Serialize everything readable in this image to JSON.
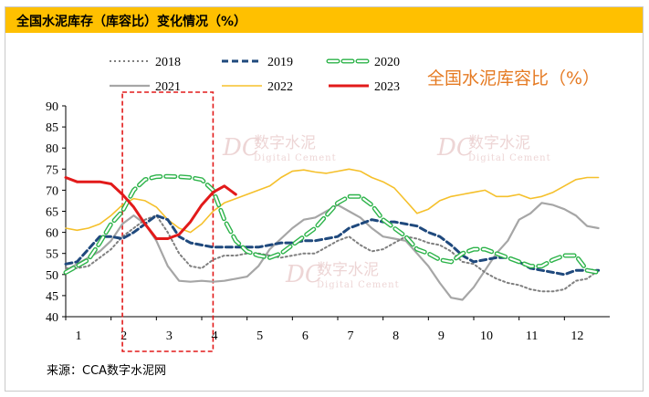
{
  "header": {
    "title": "全国水泥库存（库容比）变化情况（%）"
  },
  "source": "来源：CCA数字水泥网",
  "watermark": {
    "cn": "数字水泥",
    "en": "Digital Cement",
    "logo": "DC"
  },
  "colors": {
    "header_bg": "#ffc000",
    "s2018": "#7f7f7f",
    "s2019": "#1f497d",
    "s2020": "#2db34a",
    "s2021": "#a6a6a6",
    "s2022": "#f5c02b",
    "s2023": "#e21a1a",
    "chart_title": "#e57a22",
    "highlight_box": "#e21a1a"
  },
  "chart_data": {
    "type": "line",
    "title": "全国水泥库容比（%）",
    "xlabel": "",
    "ylabel": "",
    "xlim": [
      1,
      13
    ],
    "ylim": [
      40,
      90
    ],
    "yticks": [
      40,
      45,
      50,
      55,
      60,
      65,
      70,
      75,
      80,
      85,
      90
    ],
    "xticks": [
      "1",
      "2",
      "3",
      "4",
      "5",
      "6",
      "7",
      "8",
      "9",
      "10",
      "11",
      "12"
    ],
    "legend_position": "top-left",
    "highlight_months": [
      2.25,
      4.25
    ],
    "series": [
      {
        "name": "2018",
        "style": "dotted",
        "x": [
          1,
          1.25,
          1.5,
          1.75,
          2,
          2.25,
          2.5,
          2.75,
          3,
          3.25,
          3.5,
          3.75,
          4,
          4.25,
          4.5,
          4.75,
          5,
          5.25,
          5.5,
          5.75,
          6,
          6.25,
          6.5,
          6.75,
          7,
          7.25,
          7.5,
          7.75,
          8,
          8.25,
          8.5,
          8.75,
          9,
          9.25,
          9.5,
          9.75,
          10,
          10.25,
          10.5,
          10.75,
          11,
          11.25,
          11.5,
          11.75,
          12,
          12.25,
          12.5,
          12.75
        ],
        "y": [
          51.5,
          51.5,
          52,
          54,
          56,
          59,
          61,
          63,
          64,
          60,
          55,
          52,
          51.5,
          53.5,
          54.5,
          54.5,
          55,
          55,
          54.5,
          54,
          54.5,
          55,
          55,
          56.5,
          58,
          59,
          57,
          55.5,
          56,
          57.5,
          59,
          58.5,
          57.5,
          57,
          55.5,
          53,
          52.5,
          50.5,
          49,
          48,
          47.5,
          46.5,
          46,
          46,
          46.5,
          48.5,
          49,
          51
        ]
      },
      {
        "name": "2019",
        "style": "dashed",
        "x": [
          1,
          1.25,
          1.5,
          1.75,
          2,
          2.25,
          2.5,
          2.75,
          3,
          3.25,
          3.5,
          3.75,
          4,
          4.25,
          4.5,
          4.75,
          5,
          5.25,
          5.5,
          5.75,
          6,
          6.25,
          6.5,
          6.75,
          7,
          7.25,
          7.5,
          7.75,
          8,
          8.25,
          8.5,
          8.75,
          9,
          9.25,
          9.5,
          9.75,
          10,
          10.25,
          10.5,
          10.75,
          11,
          11.25,
          11.5,
          11.75,
          12,
          12.25,
          12.5,
          12.75
        ],
        "y": [
          52.5,
          53,
          56,
          59,
          59,
          58.5,
          60,
          62,
          64,
          63,
          59,
          57.5,
          57,
          56.5,
          56.5,
          56.5,
          56.5,
          56.5,
          57,
          57.5,
          57.5,
          58,
          58,
          58.5,
          59,
          61,
          62,
          63,
          62.5,
          62.5,
          62,
          61.5,
          60,
          59,
          57,
          54.5,
          53,
          53.5,
          54,
          54,
          53,
          51.5,
          51,
          50.5,
          50,
          51,
          51,
          51
        ]
      },
      {
        "name": "2020",
        "style": "longdash",
        "x": [
          1,
          1.25,
          1.5,
          1.75,
          2,
          2.25,
          2.5,
          2.75,
          3,
          3.25,
          3.5,
          3.75,
          4,
          4.25,
          4.5,
          4.75,
          5,
          5.25,
          5.5,
          5.75,
          6,
          6.25,
          6.5,
          6.75,
          7,
          7.25,
          7.5,
          7.75,
          8,
          8.25,
          8.5,
          8.75,
          9,
          9.25,
          9.5,
          9.75,
          10,
          10.25,
          10.5,
          10.75,
          11,
          11.25,
          11.5,
          11.75,
          12,
          12.25,
          12.5,
          12.75
        ],
        "y": [
          50.5,
          52,
          53.5,
          57.5,
          62,
          65,
          70,
          72.5,
          73.2,
          73.3,
          73.2,
          73,
          72.5,
          70,
          63,
          58,
          55.5,
          54.5,
          54,
          55,
          57,
          59,
          61,
          64,
          67,
          68.5,
          68.5,
          66.5,
          63,
          61,
          59,
          56,
          55,
          53.5,
          53,
          55,
          56,
          56,
          55,
          54,
          53,
          52,
          52,
          53.5,
          54.5,
          54.5,
          51,
          50.5
        ]
      },
      {
        "name": "2021",
        "style": "solid",
        "x": [
          1,
          1.25,
          1.5,
          1.75,
          2,
          2.25,
          2.5,
          2.75,
          3,
          3.25,
          3.5,
          3.75,
          4,
          4.25,
          4.5,
          4.75,
          5,
          5.25,
          5.5,
          5.75,
          6,
          6.25,
          6.5,
          6.75,
          7,
          7.25,
          7.5,
          7.75,
          8,
          8.25,
          8.5,
          8.75,
          9,
          9.25,
          9.5,
          9.75,
          10,
          10.25,
          10.5,
          10.75,
          11,
          11.25,
          11.5,
          11.75,
          12,
          12.25,
          12.5,
          12.75
        ],
        "y": [
          51,
          52.5,
          54,
          55.5,
          58,
          62,
          64,
          62,
          58,
          52,
          48.5,
          48.3,
          48.5,
          48.3,
          48.5,
          49,
          49.5,
          52,
          56,
          58.5,
          61,
          63,
          63.5,
          65,
          66.5,
          65,
          63.5,
          61,
          59,
          58.5,
          58,
          55,
          52,
          48,
          44.5,
          44,
          47,
          51,
          55,
          58,
          63,
          64.5,
          67,
          66.5,
          65.5,
          64,
          61.5,
          61
        ]
      },
      {
        "name": "2022",
        "style": "solid",
        "x": [
          1,
          1.25,
          1.5,
          1.75,
          2,
          2.25,
          2.5,
          2.75,
          3,
          3.25,
          3.5,
          3.75,
          4,
          4.25,
          4.5,
          4.75,
          5,
          5.25,
          5.5,
          5.75,
          6,
          6.25,
          6.5,
          6.75,
          7,
          7.25,
          7.5,
          7.75,
          8,
          8.25,
          8.5,
          8.75,
          9,
          9.25,
          9.5,
          9.75,
          10,
          10.25,
          10.5,
          10.75,
          11,
          11.25,
          11.5,
          11.75,
          12,
          12.25,
          12.5,
          12.75
        ],
        "y": [
          61,
          60.5,
          61,
          62,
          64,
          66.5,
          68,
          67.5,
          66,
          63,
          61,
          60,
          62,
          65,
          67,
          68,
          69,
          70,
          71,
          73,
          74.5,
          74.8,
          74.3,
          74,
          74.5,
          75,
          74.5,
          73,
          72,
          70.5,
          67.5,
          64.5,
          65.5,
          67.5,
          68.5,
          69,
          69.5,
          70,
          68.5,
          68.5,
          69,
          68,
          68.5,
          69.5,
          71,
          72.5,
          73,
          73
        ]
      },
      {
        "name": "2023",
        "style": "solid",
        "x": [
          1,
          1.25,
          1.5,
          1.75,
          2,
          2.25,
          2.5,
          2.75,
          3,
          3.25,
          3.5,
          3.75,
          4,
          4.25,
          4.5,
          4.75
        ],
        "y": [
          73,
          72,
          72,
          72,
          71.5,
          69,
          66,
          62,
          58.5,
          58.5,
          59.5,
          62.5,
          66.5,
          69.5,
          71,
          69
        ]
      }
    ]
  }
}
